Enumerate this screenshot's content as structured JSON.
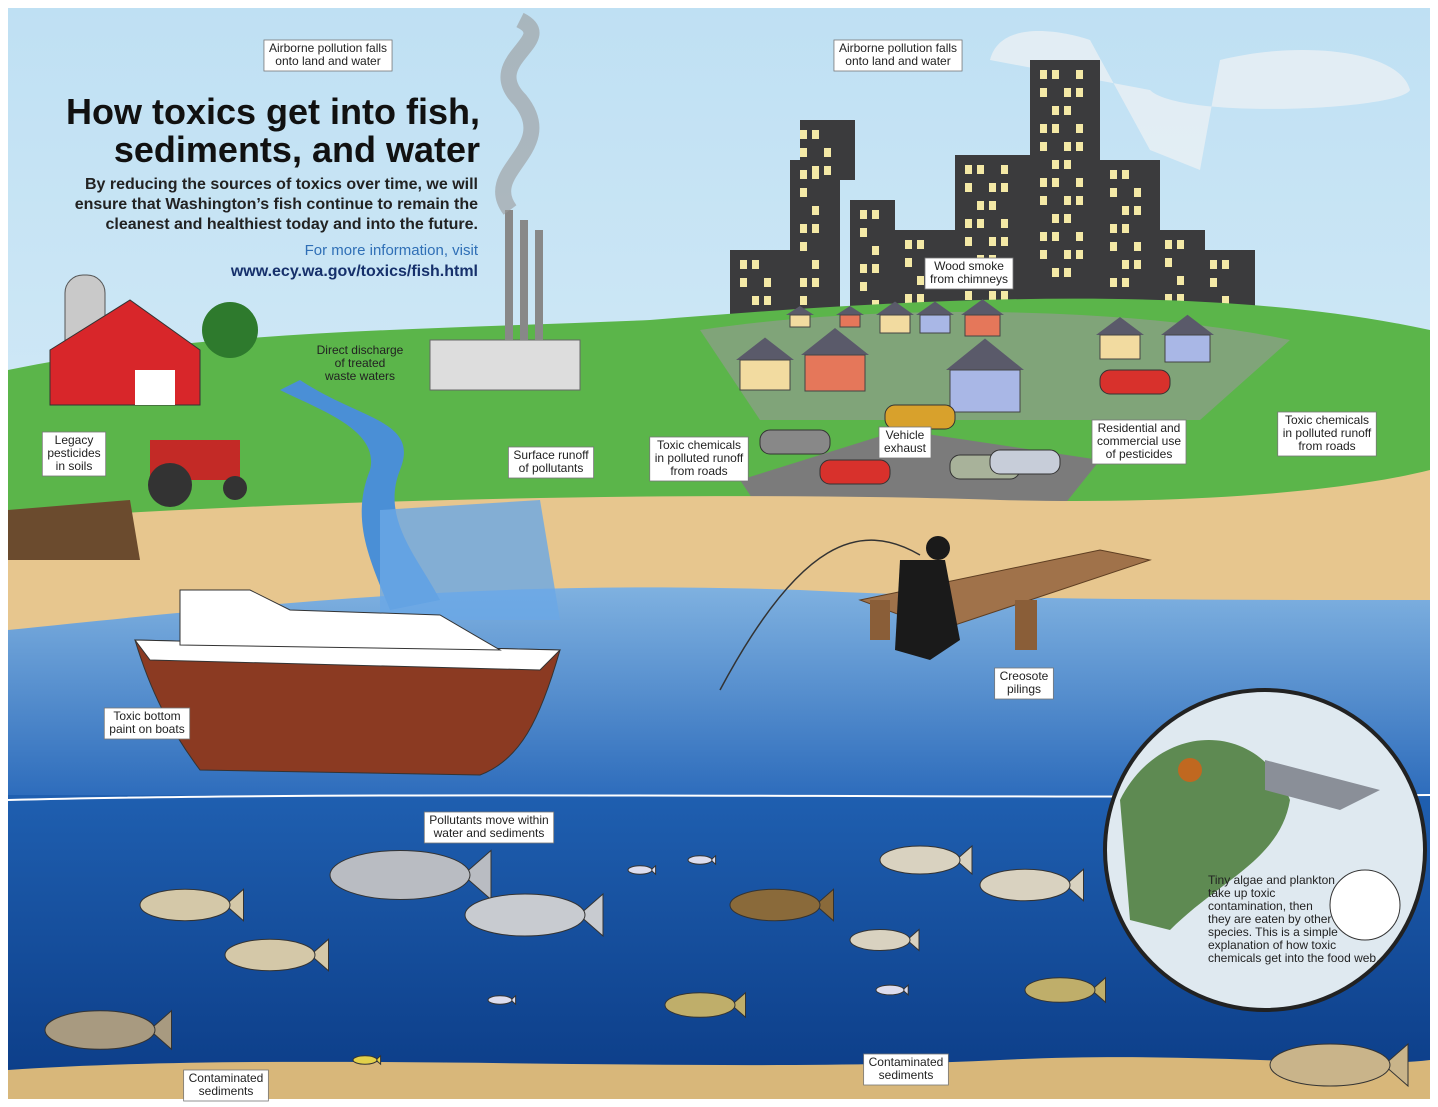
{
  "header": {
    "title": [
      "How toxics get into fish,",
      "sediments, and water"
    ],
    "subtitle": [
      "By reducing the sources of toxics over time, we will",
      "ensure that Washington’s fish continue to remain the",
      "cleanest and healthiest today and into the future."
    ],
    "info": "For more information, visit",
    "url": "www.ecy.wa.gov/toxics/fish.html"
  },
  "labels": [
    {
      "lines": [
        "Airborne pollution falls",
        "onto land and water"
      ]
    },
    {
      "lines": [
        "Airborne pollution falls",
        "onto land and water"
      ]
    },
    {
      "lines": [
        "Wood smoke",
        "from chimneys"
      ]
    },
    {
      "lines": [
        "Direct discharge",
        "of treated",
        "waste waters"
      ]
    },
    {
      "lines": [
        "Legacy",
        "pesticides",
        "in soils"
      ]
    },
    {
      "lines": [
        "Surface runoff",
        "of pollutants"
      ]
    },
    {
      "lines": [
        "Toxic chemicals",
        "in polluted runoff",
        "from roads"
      ]
    },
    {
      "lines": [
        "Vehicle",
        "exhaust"
      ]
    },
    {
      "lines": [
        "Residential and",
        "commercial use",
        "of pesticides"
      ]
    },
    {
      "lines": [
        "Toxic chemicals",
        "in polluted runoff",
        "from roads"
      ]
    },
    {
      "lines": [
        "Creosote",
        "pilings"
      ]
    },
    {
      "lines": [
        "Toxic bottom",
        "paint on boats"
      ]
    },
    {
      "lines": [
        "Pollutants move within",
        "water and sediments"
      ]
    },
    {
      "lines": [
        "Contaminated",
        "sediments"
      ]
    },
    {
      "lines": [
        "Contaminated",
        "sediments"
      ]
    }
  ],
  "inset": {
    "lines": [
      "Tiny algae and plankton",
      "take up toxic",
      "contamination, then",
      "they are eaten by other",
      "species. This is a simple",
      "explanation of how toxic",
      "chemicals get into the food web."
    ]
  }
}
